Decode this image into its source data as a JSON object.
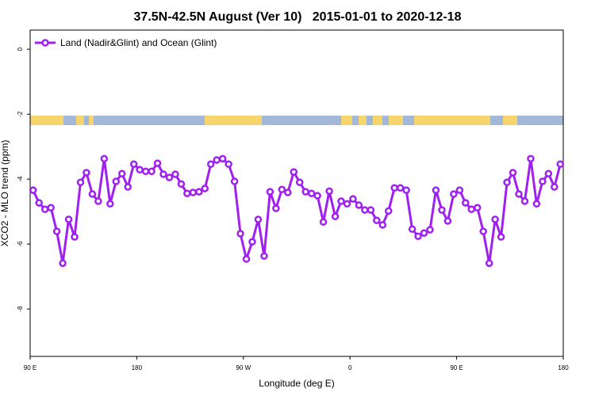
{
  "chart_data": {
    "type": "line",
    "title": "37.5N-42.5N August (Ver 10)   2015-01-01 to 2020-12-18",
    "xlabel": "Longitude (deg E)",
    "ylabel": "XCO2 - MLO trend (ppm)",
    "x": [
      92.5,
      97.5,
      102.5,
      107.5,
      112.5,
      117.5,
      122.5,
      127.5,
      132.5,
      137.5,
      142.5,
      147.5,
      152.5,
      157.5,
      162.5,
      167.5,
      172.5,
      177.5,
      182.5,
      187.5,
      192.5,
      197.5,
      202.5,
      207.5,
      212.5,
      217.5,
      222.5,
      227.5,
      232.5,
      237.5,
      242.5,
      247.5,
      252.5,
      257.5,
      262.5,
      267.5,
      272.5,
      277.5,
      282.5,
      287.5,
      292.5,
      297.5,
      302.5,
      307.5,
      312.5,
      317.5,
      322.5,
      327.5,
      332.5,
      337.5,
      342.5,
      347.5,
      352.5,
      357.5,
      362.5,
      367.5,
      372.5,
      377.5,
      382.5,
      387.5,
      392.5,
      397.5,
      402.5,
      407.5,
      412.5,
      417.5,
      422.5,
      427.5,
      432.5,
      437.5,
      442.5,
      447.5,
      452.5,
      457.5,
      462.5,
      467.5,
      472.5,
      477.5,
      482.5,
      487.5,
      492.5,
      497.5,
      502.5,
      507.5,
      512.5,
      517.5,
      522.5,
      527.5,
      532.5,
      537.5
    ],
    "series": [
      {
        "name": "Land (Nadir&Glint) and Ocean (Glint)",
        "color": "#a020f0",
        "values": [
          -4.34,
          -4.73,
          -4.93,
          -4.88,
          -5.61,
          -6.59,
          -5.24,
          -5.78,
          -4.1,
          -3.8,
          -4.46,
          -4.68,
          -3.37,
          -4.76,
          -4.07,
          -3.83,
          -4.24,
          -3.54,
          -3.71,
          -3.76,
          -3.76,
          -3.51,
          -3.85,
          -3.95,
          -3.85,
          -4.15,
          -4.44,
          -4.41,
          -4.39,
          -4.29,
          -3.54,
          -3.41,
          -3.37,
          -3.54,
          -4.07,
          -5.68,
          -6.46,
          -5.93,
          -5.24,
          -6.37,
          -4.39,
          -4.9,
          -4.32,
          -4.41,
          -3.78,
          -4.1,
          -4.39,
          -4.44,
          -4.51,
          -5.32,
          -4.37,
          -5.15,
          -4.68,
          -4.76,
          -4.61,
          -4.8,
          -4.95,
          -4.95,
          -5.27,
          -5.41,
          -4.98,
          -4.27,
          -4.27,
          -4.34,
          -5.54,
          -5.76,
          -5.66,
          -5.56,
          -4.34,
          -4.95,
          -5.29,
          -4.46,
          -4.34,
          -4.73,
          -4.93,
          -4.88,
          -5.61,
          -6.59,
          -5.24,
          -5.78,
          -4.1,
          -3.8,
          -4.46,
          -4.68,
          -3.37,
          -4.76,
          -4.07,
          -3.83,
          -4.24,
          -3.54
        ]
      }
    ],
    "xlim": [
      90,
      540
    ],
    "xticks": [
      {
        "value": 90,
        "label": "90 E"
      },
      180,
      {
        "value": 270,
        "label": "90 W"
      },
      {
        "value": 360,
        "label": "0"
      },
      {
        "value": 450,
        "label": "90 E"
      },
      {
        "value": 540,
        "label": "180"
      }
    ],
    "ylim": [
      -9.46,
      0.59
    ],
    "yticks": [
      0,
      -2,
      -4,
      -6,
      -8
    ],
    "legend": "top-left"
  }
}
